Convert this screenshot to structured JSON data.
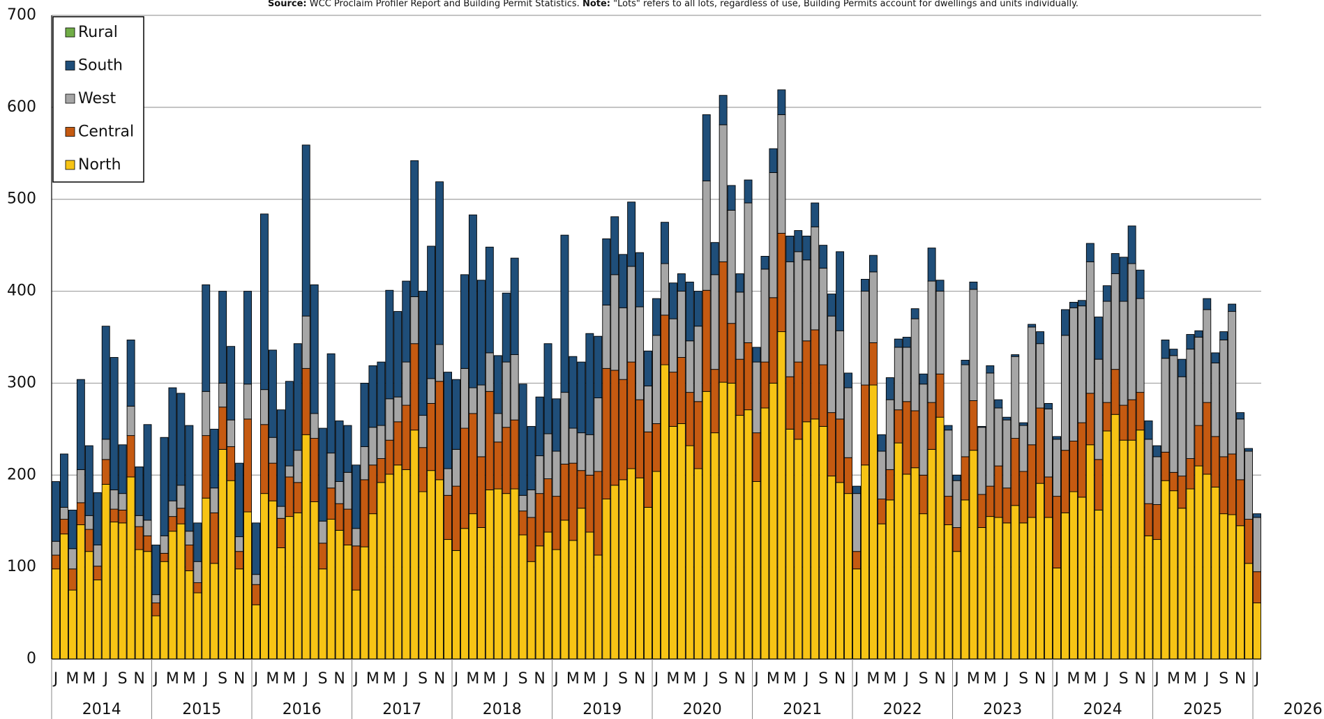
{
  "chart_data": {
    "type": "stacked_bar",
    "source_label": "Source:",
    "source_text": " WCC Proclaim Profiler Report and Building Permit Statistics. ",
    "note_label": "Note:",
    "note_text": " \"Lots\" refers to all lots, regardless of use, Building Permits account for dwellings and units individually.",
    "categories": [
      "J",
      null,
      "M",
      null,
      "M",
      null,
      "J",
      null,
      "S",
      null,
      "N",
      null,
      "J",
      null,
      "M",
      null,
      "M",
      null,
      "J",
      null,
      "S",
      null,
      "N",
      null,
      "J",
      null,
      "M",
      null,
      "M",
      null,
      "J",
      null,
      "S",
      null,
      "N",
      null,
      "J",
      null,
      "M",
      null,
      "M",
      null,
      "J",
      null,
      "S",
      null,
      "N",
      null,
      "J",
      null,
      "M",
      null,
      "M",
      null,
      "J",
      null,
      "S",
      null,
      "N",
      null,
      "J",
      null,
      "M",
      null,
      "M",
      null,
      "J",
      null,
      "S",
      null,
      "N",
      null,
      "J",
      null,
      "M",
      null,
      "M",
      null,
      "J",
      null,
      "S",
      null,
      "N",
      null,
      "J",
      null,
      "M",
      null,
      "M",
      null,
      "J",
      null,
      "S",
      null,
      "N",
      null,
      "J",
      null,
      "M",
      null,
      "M",
      null,
      "J",
      null,
      "S",
      null,
      "N",
      null,
      "J",
      null,
      "M",
      null,
      "M",
      null,
      "J",
      null,
      "S",
      null,
      "N",
      null,
      "J",
      null,
      "M",
      null,
      "M",
      null,
      "J",
      null,
      "S",
      null,
      "N",
      null,
      "J",
      null,
      "M",
      null,
      "M",
      null,
      "J",
      null,
      "S",
      null,
      "N",
      null,
      "J"
    ],
    "year_labels": [
      "2014",
      "2015",
      "2016",
      "2017",
      "2018",
      "2019",
      "2020",
      "2021",
      "2022",
      "2023",
      "2024",
      "2025",
      "2026"
    ],
    "ylim": [
      0,
      700
    ],
    "yticks": [
      0,
      100,
      200,
      300,
      400,
      500,
      600,
      700
    ],
    "grid": true,
    "legend": "upper left",
    "series": [
      {
        "name": "North",
        "color": "#f7c415",
        "values": [
          98,
          136,
          75,
          146,
          117,
          86,
          190,
          149,
          148,
          198,
          119,
          117,
          47,
          106,
          139,
          147,
          96,
          72,
          175,
          104,
          228,
          194,
          98,
          160,
          59,
          180,
          172,
          121,
          155,
          159,
          244,
          171,
          98,
          152,
          140,
          124,
          75,
          122,
          158,
          192,
          201,
          211,
          206,
          249,
          182,
          205,
          195,
          130,
          118,
          142,
          158,
          143,
          184,
          185,
          180,
          185,
          135,
          106,
          123,
          138,
          119,
          151,
          129,
          164,
          138,
          113,
          174,
          189,
          195,
          207,
          197,
          165,
          204,
          320,
          253,
          256,
          232,
          207,
          291,
          246,
          301,
          300,
          265,
          271,
          193,
          273,
          300,
          356,
          250,
          239,
          258,
          261,
          253,
          199,
          192,
          180,
          98,
          211,
          298,
          147,
          173,
          235,
          201,
          208,
          158,
          228,
          263,
          146,
          117,
          173,
          227,
          143,
          155,
          154,
          148,
          167,
          148,
          154,
          191,
          154,
          99,
          159,
          182,
          176,
          233,
          162,
          248,
          266,
          238,
          238,
          249,
          134,
          130,
          194,
          183,
          164,
          185,
          210,
          201,
          187,
          158,
          157,
          145,
          104,
          61
        ]
      },
      {
        "name": "Central",
        "color": "#c55a11",
        "values": [
          15,
          16,
          23,
          24,
          24,
          15,
          27,
          14,
          14,
          45,
          25,
          17,
          14,
          9,
          16,
          17,
          28,
          11,
          68,
          55,
          46,
          37,
          19,
          101,
          22,
          75,
          41,
          32,
          43,
          33,
          72,
          69,
          28,
          34,
          29,
          39,
          48,
          73,
          53,
          26,
          37,
          47,
          70,
          94,
          48,
          73,
          107,
          48,
          70,
          109,
          109,
          77,
          107,
          51,
          72,
          75,
          26,
          48,
          57,
          58,
          58,
          61,
          84,
          41,
          62,
          91,
          142,
          125,
          109,
          116,
          85,
          82,
          52,
          54,
          59,
          72,
          58,
          73,
          110,
          69,
          131,
          65,
          61,
          73,
          53,
          50,
          93,
          107,
          57,
          84,
          88,
          97,
          67,
          69,
          69,
          39,
          19,
          87,
          46,
          27,
          33,
          36,
          79,
          62,
          42,
          51,
          47,
          31,
          26,
          47,
          54,
          36,
          33,
          56,
          38,
          73,
          56,
          79,
          82,
          44,
          78,
          68,
          55,
          81,
          56,
          55,
          31,
          49,
          38,
          44,
          41,
          35,
          38,
          31,
          20,
          35,
          33,
          44,
          78,
          55,
          62,
          66,
          50,
          48,
          34
        ]
      },
      {
        "name": "West",
        "color": "#a6a6a6",
        "values": [
          15,
          13,
          22,
          36,
          15,
          23,
          22,
          21,
          18,
          32,
          12,
          17,
          9,
          19,
          17,
          25,
          15,
          23,
          48,
          27,
          26,
          29,
          16,
          38,
          11,
          38,
          28,
          13,
          12,
          35,
          57,
          27,
          24,
          38,
          24,
          40,
          19,
          36,
          41,
          36,
          45,
          27,
          47,
          51,
          35,
          27,
          40,
          29,
          40,
          65,
          28,
          78,
          42,
          31,
          71,
          71,
          17,
          30,
          41,
          49,
          49,
          78,
          38,
          41,
          44,
          80,
          69,
          104,
          78,
          104,
          101,
          50,
          96,
          56,
          58,
          72,
          56,
          82,
          119,
          103,
          149,
          123,
          73,
          152,
          77,
          101,
          136,
          129,
          125,
          120,
          88,
          112,
          105,
          105,
          96,
          76,
          63,
          102,
          77,
          52,
          76,
          68,
          59,
          100,
          99,
          132,
          90,
          72,
          51,
          100,
          121,
          73,
          123,
          63,
          74,
          89,
          50,
          128,
          70,
          74,
          62,
          125,
          145,
          127,
          143,
          109,
          110,
          104,
          113,
          148,
          102,
          70,
          52,
          102,
          127,
          108,
          119,
          96,
          101,
          80,
          127,
          155,
          66,
          74,
          59
        ]
      },
      {
        "name": "South",
        "color": "#1f4e79",
        "values": [
          65,
          58,
          42,
          98,
          76,
          57,
          123,
          144,
          53,
          72,
          53,
          104,
          54,
          107,
          123,
          100,
          115,
          42,
          116,
          64,
          100,
          80,
          80,
          101,
          56,
          191,
          95,
          105,
          92,
          116,
          186,
          140,
          101,
          108,
          66,
          51,
          69,
          69,
          67,
          69,
          118,
          93,
          88,
          148,
          135,
          144,
          177,
          105,
          76,
          102,
          188,
          114,
          115,
          63,
          75,
          105,
          121,
          69,
          64,
          98,
          57,
          171,
          78,
          77,
          110,
          67,
          72,
          63,
          58,
          70,
          59,
          38,
          40,
          45,
          39,
          19,
          64,
          38,
          72,
          35,
          32,
          27,
          20,
          25,
          16,
          14,
          26,
          27,
          28,
          23,
          26,
          26,
          25,
          24,
          86,
          16,
          8,
          13,
          18,
          18,
          24,
          9,
          11,
          11,
          11,
          36,
          12,
          5,
          6,
          5,
          8,
          1,
          8,
          9,
          3,
          2,
          3,
          3,
          13,
          6,
          3,
          28,
          6,
          6,
          20,
          46,
          17,
          22,
          48,
          41,
          31,
          20,
          12,
          20,
          7,
          19,
          16,
          7,
          12,
          11,
          9,
          8,
          7,
          3,
          4
        ]
      },
      {
        "name": "Rural",
        "color": "#70ad47",
        "values": [
          0,
          0,
          0,
          0,
          0,
          0,
          0,
          0,
          0,
          0,
          0,
          0,
          0,
          0,
          0,
          0,
          0,
          0,
          0,
          0,
          0,
          0,
          0,
          0,
          0,
          0,
          0,
          0,
          0,
          0,
          0,
          0,
          0,
          0,
          0,
          0,
          0,
          0,
          0,
          0,
          0,
          0,
          0,
          0,
          0,
          0,
          0,
          0,
          0,
          0,
          0,
          0,
          0,
          0,
          0,
          0,
          0,
          0,
          0,
          0,
          0,
          0,
          0,
          0,
          0,
          0,
          0,
          0,
          0,
          0,
          0,
          0,
          0,
          0,
          0,
          0,
          0,
          0,
          0,
          0,
          0,
          0,
          0,
          0,
          0,
          0,
          0,
          0,
          0,
          0,
          0,
          0,
          0,
          0,
          0,
          0,
          0,
          0,
          0,
          0,
          0,
          0,
          0,
          0,
          0,
          0,
          0,
          0,
          0,
          0,
          0,
          0,
          0,
          0,
          0,
          0,
          0,
          0,
          0,
          0,
          0,
          0,
          0,
          0,
          0,
          0,
          0,
          0,
          0,
          0,
          0,
          0,
          0,
          0,
          0,
          0,
          0,
          0,
          0,
          0,
          0,
          0,
          0,
          0,
          0
        ]
      }
    ]
  }
}
